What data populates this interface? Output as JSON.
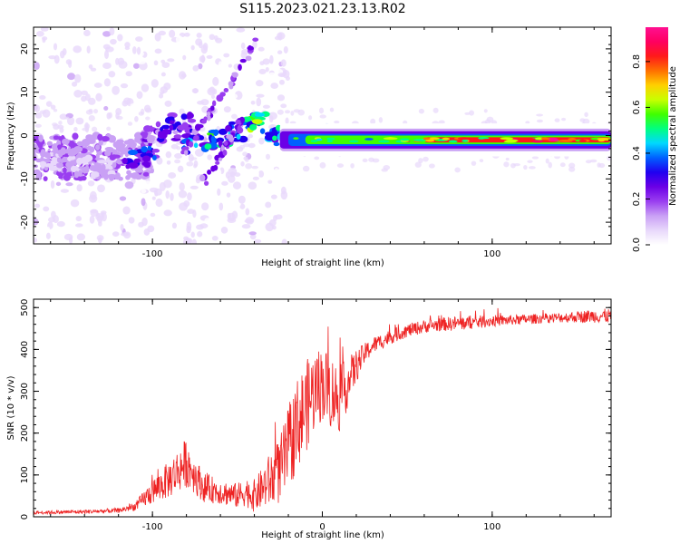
{
  "title": "S115.2023.021.23.13.R02",
  "colorbar": {
    "label": "Normalized spectral amplitude",
    "ticks": [
      "0.0",
      "0.2",
      "0.4",
      "0.6",
      "0.8"
    ],
    "tick_values": [
      0.0,
      0.2,
      0.4,
      0.6,
      0.8
    ],
    "range": [
      0,
      0.95
    ],
    "colors": [
      "#ffffff",
      "#e8d8fb",
      "#c9a0f5",
      "#9a3ef0",
      "#6b00e6",
      "#2000f0",
      "#0060ff",
      "#00d8ff",
      "#00ff80",
      "#40ff00",
      "#c8ff00",
      "#ffd000",
      "#ff7000",
      "#ff1a1a",
      "#ff0060",
      "#ff1090"
    ]
  },
  "chart_data": [
    {
      "type": "heatmap",
      "xlabel": "Height of straight line (km)",
      "ylabel": "Frequency (Hz)",
      "xlim": [
        -170,
        170
      ],
      "ylim": [
        -25,
        25
      ],
      "xticks": [
        -100,
        0,
        100
      ],
      "xtick_labels": [
        "-100",
        "",
        "100"
      ],
      "yticks": [
        -20,
        -10,
        0,
        10,
        20
      ],
      "ytick_labels": [
        "-20",
        "-10",
        "0",
        "10",
        "20"
      ],
      "blobs": [
        {
          "x": -160,
          "y": -6,
          "v": 0.12
        },
        {
          "x": -150,
          "y": -5,
          "v": 0.15
        },
        {
          "x": -140,
          "y": -7,
          "v": 0.12
        },
        {
          "x": -130,
          "y": -8,
          "v": 0.13
        },
        {
          "x": -120,
          "y": -5,
          "v": 0.17
        },
        {
          "x": -110,
          "y": -6,
          "v": 0.3
        },
        {
          "x": -105,
          "y": -4,
          "v": 0.35
        },
        {
          "x": -98,
          "y": 0,
          "v": 0.25
        },
        {
          "x": -90,
          "y": 1,
          "v": 0.3
        },
        {
          "x": -83,
          "y": 3,
          "v": 0.32
        },
        {
          "x": -75,
          "y": -2,
          "v": 0.4
        },
        {
          "x": -62,
          "y": -1,
          "v": 0.5
        },
        {
          "x": -50,
          "y": 1,
          "v": 0.45
        },
        {
          "x": -38,
          "y": 3,
          "v": 0.6
        },
        {
          "x": -25,
          "y": 0,
          "v": 0.5
        },
        {
          "x": -10,
          "y": -0.5,
          "v": 0.55
        },
        {
          "x": 5,
          "y": 0,
          "v": 0.6
        },
        {
          "x": 30,
          "y": -0.5,
          "v": 0.5
        },
        {
          "x": 60,
          "y": -1,
          "v": 0.65
        },
        {
          "x": 90,
          "y": -1,
          "v": 0.8
        },
        {
          "x": 120,
          "y": -1,
          "v": 0.9
        },
        {
          "x": 150,
          "y": -1,
          "v": 0.95
        }
      ]
    },
    {
      "type": "line",
      "xlabel": "Height of straight line (km)",
      "ylabel": "SNR (10 * v/v)",
      "xlim": [
        -170,
        170
      ],
      "ylim": [
        0,
        520
      ],
      "xticks": [
        -100,
        0,
        100
      ],
      "xtick_labels": [
        "-100",
        "0",
        "100"
      ],
      "yticks": [
        0,
        100,
        200,
        300,
        400,
        500
      ],
      "ytick_labels": [
        "0",
        "100",
        "200",
        "300",
        "400",
        "500"
      ],
      "series": [
        {
          "color": "#ee2222",
          "x": [
            -170,
            -140,
            -120,
            -110,
            -100,
            -90,
            -80,
            -75,
            -70,
            -60,
            -50,
            -45,
            -40,
            -35,
            -30,
            -25,
            -20,
            -15,
            -10,
            -5,
            0,
            5,
            10,
            15,
            20,
            25,
            30,
            40,
            50,
            60,
            70,
            80,
            90,
            100,
            110,
            120,
            130,
            140,
            150,
            160,
            170
          ],
          "y": [
            10,
            12,
            15,
            25,
            60,
            90,
            130,
            100,
            70,
            60,
            50,
            60,
            50,
            70,
            90,
            110,
            160,
            220,
            260,
            300,
            320,
            300,
            280,
            320,
            360,
            390,
            410,
            430,
            445,
            455,
            460,
            462,
            465,
            468,
            470,
            472,
            474,
            476,
            478,
            480,
            480
          ],
          "noise": [
            4,
            5,
            6,
            10,
            30,
            45,
            60,
            45,
            35,
            30,
            30,
            35,
            40,
            50,
            70,
            80,
            100,
            110,
            110,
            100,
            90,
            90,
            80,
            60,
            40,
            25,
            20,
            18,
            16,
            16,
            16,
            18,
            16,
            14,
            12,
            12,
            12,
            12,
            14,
            16,
            18
          ]
        }
      ]
    }
  ]
}
